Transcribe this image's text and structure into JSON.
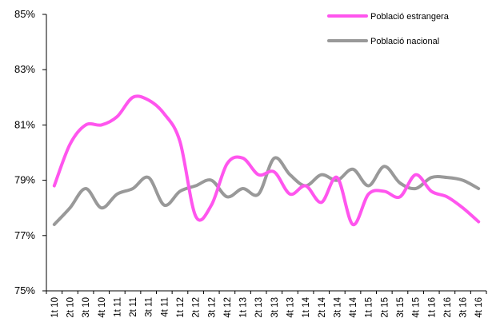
{
  "chart_data": {
    "type": "line",
    "title": "",
    "xlabel": "",
    "ylabel": "",
    "ylim": [
      75,
      85
    ],
    "yticks": [
      "75%",
      "77%",
      "79%",
      "81%",
      "83%",
      "85%"
    ],
    "grid": false,
    "legend_position": "top-right",
    "categories": [
      "1t 10",
      "2t 10",
      "3t 10",
      "4t 10",
      "1t 11",
      "2t 11",
      "3t 11",
      "4t 11",
      "1t 12",
      "2t 12",
      "3t 12",
      "4t 12",
      "1t 13",
      "2t 13",
      "3t 13",
      "4t 13",
      "1t 14",
      "2t 14",
      "3t 14",
      "4t 14",
      "1t 15",
      "2t 15",
      "3t 15",
      "4t 15",
      "1t 16",
      "2t 16",
      "3t 16",
      "4t 16"
    ],
    "series": [
      {
        "name": "Població estrangera",
        "color": "#ff55ee",
        "values": [
          78.8,
          80.3,
          81.0,
          81.0,
          81.3,
          82.0,
          81.9,
          81.4,
          80.4,
          77.7,
          78.1,
          79.6,
          79.8,
          79.2,
          79.3,
          78.5,
          78.8,
          78.2,
          79.1,
          77.4,
          78.5,
          78.6,
          78.4,
          79.2,
          78.6,
          78.4,
          78.0,
          77.5
        ]
      },
      {
        "name": "Població nacional",
        "color": "#999999",
        "values": [
          77.4,
          78.0,
          78.7,
          78.0,
          78.5,
          78.7,
          79.1,
          78.1,
          78.6,
          78.8,
          79.0,
          78.4,
          78.7,
          78.5,
          79.8,
          79.2,
          78.8,
          79.2,
          79.0,
          79.4,
          78.8,
          79.5,
          78.9,
          78.7,
          79.1,
          79.1,
          79.0,
          78.7
        ]
      }
    ]
  }
}
